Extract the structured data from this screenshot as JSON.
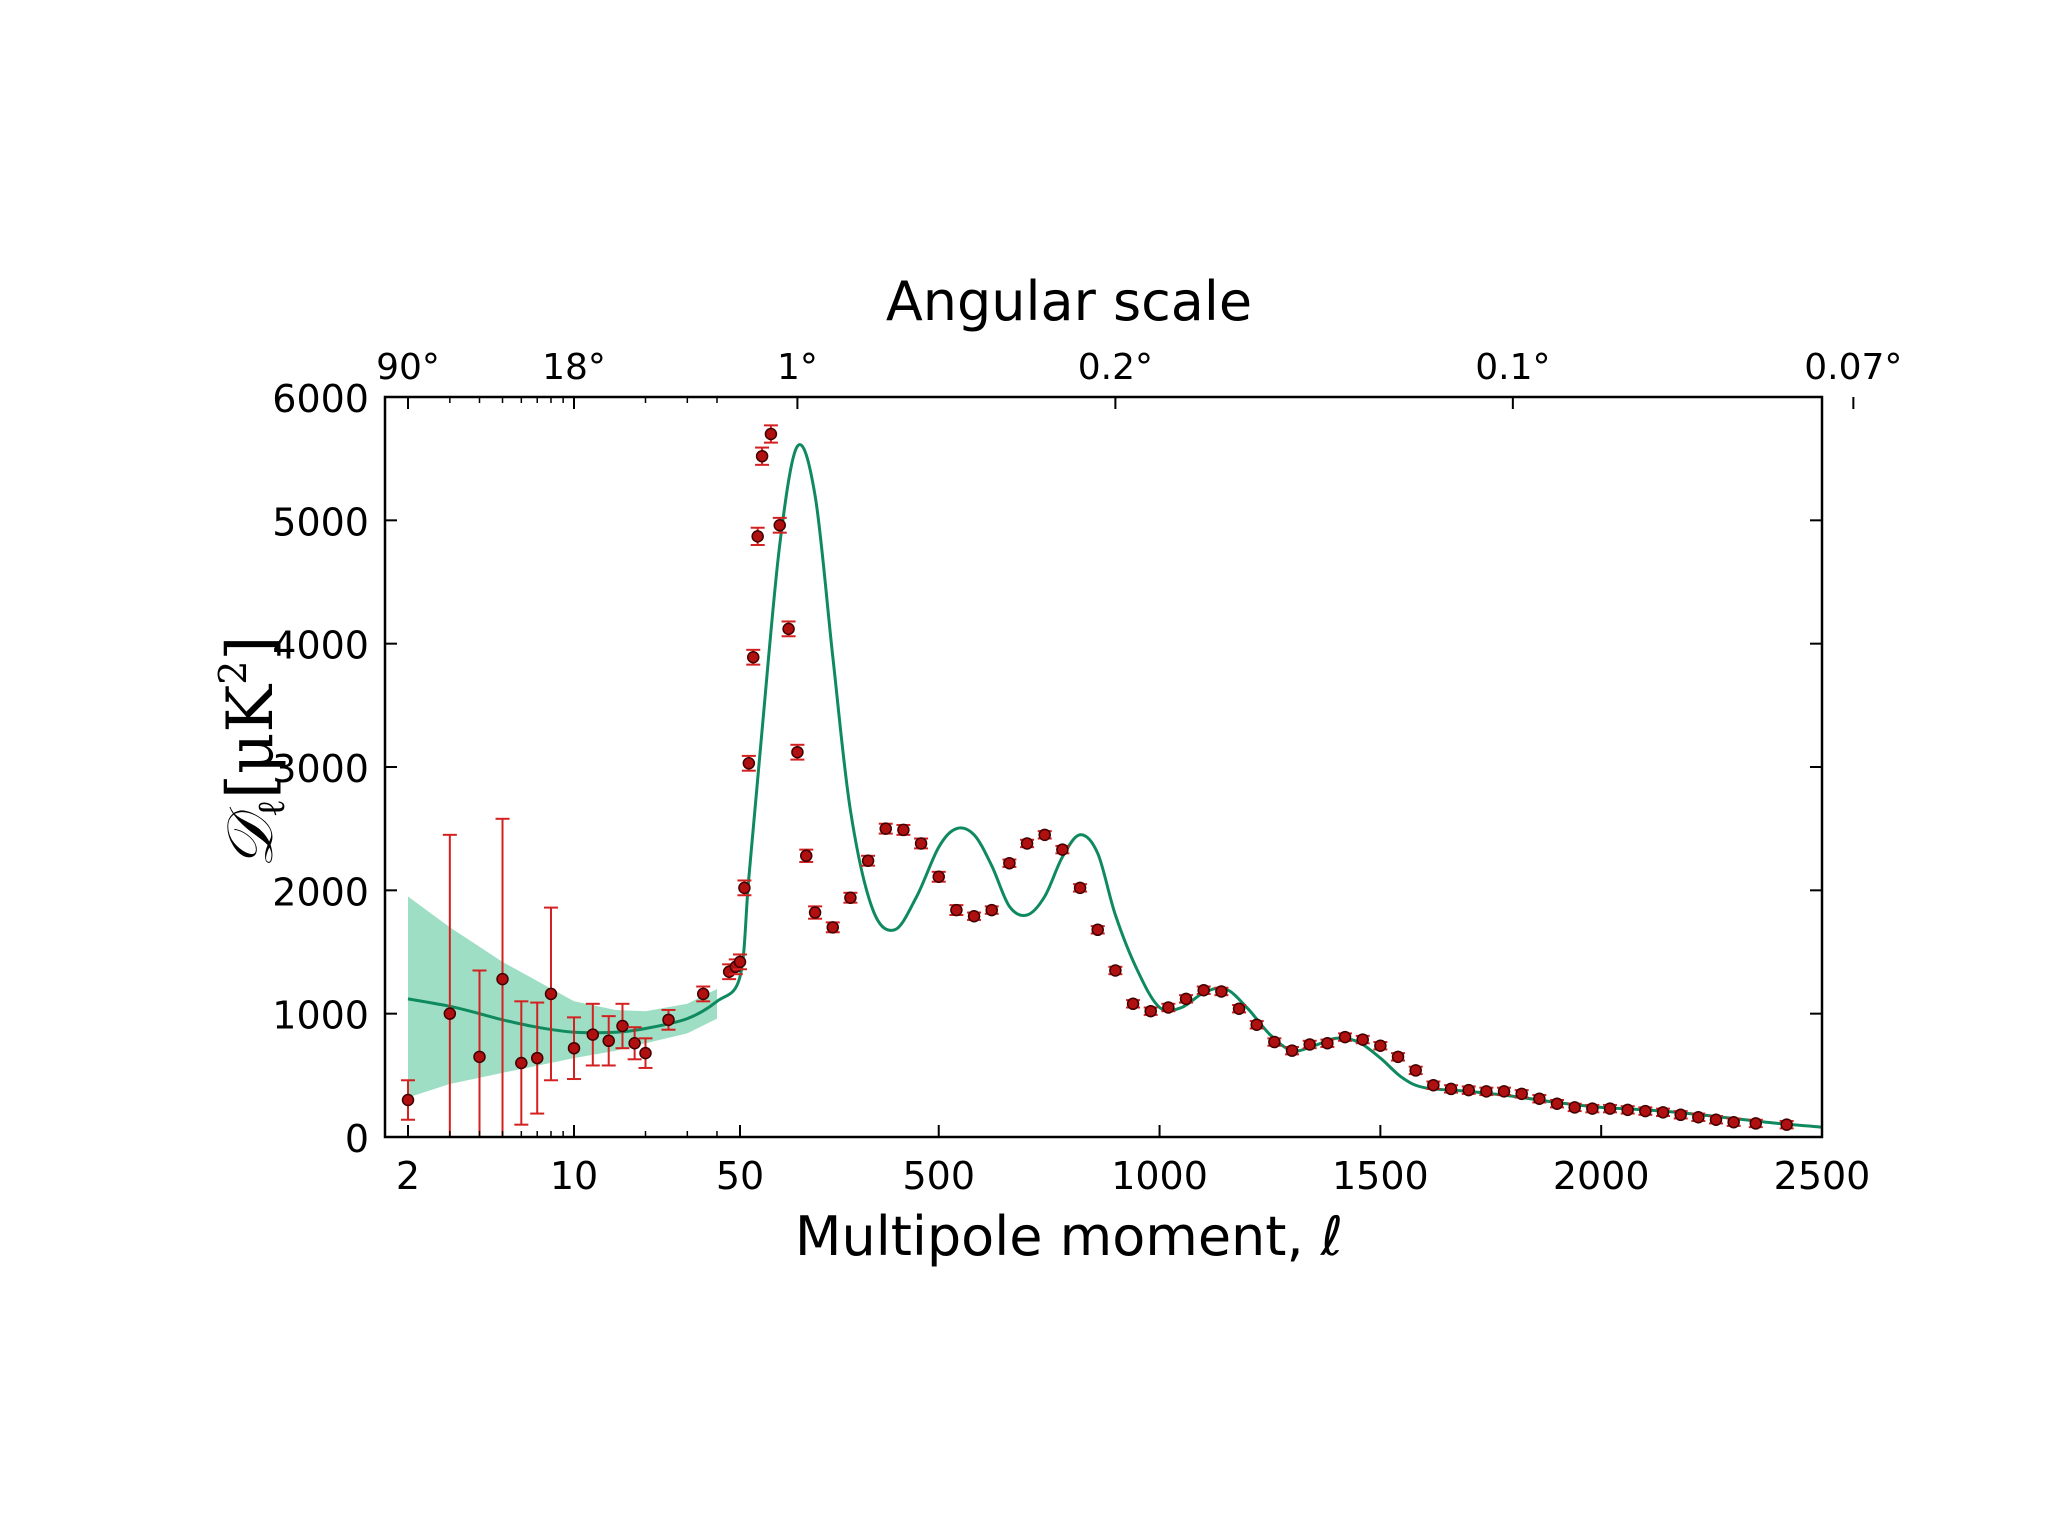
{
  "chart_data": {
    "type": "scatter",
    "title": "Angular scale",
    "xlabel": "Multipole moment, ℓ",
    "ylabel_parts": {
      "main": "𝒟",
      "sub": "ℓ",
      "unit_open": "[μK",
      "unit_sup": "2",
      "unit_close": "]"
    },
    "x_scale": "log below 50, linear above 50",
    "xlim": [
      1.6,
      2500
    ],
    "ylim": [
      0,
      6000
    ],
    "x_ticks": [
      2,
      10,
      50,
      500,
      1000,
      1500,
      2000,
      2500
    ],
    "x_tick_labels": [
      "2",
      "10",
      "50",
      "500",
      "1000",
      "1500",
      "2000",
      "2500"
    ],
    "y_ticks": [
      0,
      1000,
      2000,
      3000,
      4000,
      5000,
      6000
    ],
    "y_tick_labels": [
      "0",
      "1000",
      "2000",
      "3000",
      "4000",
      "5000",
      "6000"
    ],
    "top_axis_tick_multipoles": [
      2,
      10,
      180,
      900,
      1800,
      2571
    ],
    "top_axis_tick_labels": [
      "90°",
      "18°",
      "1°",
      "0.2°",
      "0.1°",
      "0.07°"
    ],
    "grid": false,
    "colors": {
      "data": "#b01010",
      "errorbar": "#d42020",
      "model": "#0f8a5f",
      "band": "#7dd3b0",
      "axis": "#000000"
    },
    "model_curve": {
      "x": [
        2,
        3,
        4,
        5,
        7,
        10,
        15,
        20,
        30,
        40,
        50,
        70,
        100,
        140,
        180,
        220,
        260,
        300,
        350,
        400,
        450,
        500,
        540,
        580,
        620,
        660,
        700,
        740,
        780,
        820,
        860,
        900,
        950,
        1000,
        1050,
        1100,
        1150,
        1200,
        1250,
        1300,
        1350,
        1400,
        1450,
        1500,
        1550,
        1600,
        1700,
        1800,
        1900,
        2000,
        2100,
        2200,
        2300,
        2400,
        2500
      ],
      "y": [
        1120,
        1060,
        1000,
        950,
        890,
        850,
        850,
        880,
        960,
        1100,
        1300,
        2100,
        3300,
        4800,
        5600,
        5200,
        3900,
        2650,
        1850,
        1680,
        1950,
        2350,
        2500,
        2450,
        2200,
        1870,
        1800,
        1950,
        2270,
        2450,
        2300,
        1800,
        1350,
        1050,
        1050,
        1170,
        1200,
        1040,
        830,
        700,
        740,
        800,
        770,
        640,
        480,
        400,
        370,
        330,
        280,
        240,
        220,
        190,
        150,
        110,
        80
      ]
    },
    "model_band": {
      "x": [
        2,
        3,
        5,
        10,
        15,
        20,
        30,
        40
      ],
      "upper": [
        1950,
        1700,
        1420,
        1100,
        1030,
        1020,
        1080,
        1200
      ],
      "lower": [
        320,
        430,
        520,
        640,
        700,
        760,
        840,
        960
      ]
    },
    "series": [
      {
        "x": [
          2,
          3,
          4,
          5,
          6,
          7,
          8,
          10,
          12,
          14,
          16,
          18,
          20,
          25,
          35,
          45,
          48,
          50,
          60,
          70,
          80,
          90,
          100,
          120,
          140,
          160,
          180,
          200,
          220,
          260,
          300,
          340,
          380,
          420,
          460,
          500,
          540,
          580,
          620,
          660,
          700,
          740,
          780,
          820,
          860,
          900,
          940,
          980,
          1020,
          1060,
          1100,
          1140,
          1180,
          1220,
          1260,
          1300,
          1340,
          1380,
          1420,
          1460,
          1500,
          1540,
          1580,
          1620,
          1660,
          1700,
          1740,
          1780,
          1820,
          1860,
          1900,
          1940,
          1980,
          2020,
          2060,
          2100,
          2140,
          2180,
          2220,
          2260,
          2300,
          2350,
          2420
        ],
        "y": [
          300,
          1000,
          650,
          1280,
          600,
          640,
          1160,
          720,
          830,
          780,
          900,
          760,
          680,
          950,
          1160,
          1340,
          1380,
          1420,
          2020,
          3030,
          3890,
          4870,
          5520,
          5700,
          4960,
          4120,
          3120,
          2280,
          1820,
          1700,
          1940,
          2240,
          2500,
          2490,
          2380,
          2110,
          1840,
          1790,
          1840,
          2220,
          2380,
          2450,
          2330,
          2020,
          1680,
          1350,
          1080,
          1020,
          1050,
          1120,
          1190,
          1180,
          1040,
          910,
          770,
          700,
          750,
          760,
          810,
          790,
          740,
          650,
          540,
          420,
          390,
          380,
          370,
          370,
          350,
          310,
          270,
          240,
          230,
          230,
          220,
          210,
          200,
          180,
          160,
          140,
          120,
          110,
          100
        ],
        "err": [
          160,
          1450,
          700,
          1300,
          500,
          450,
          700,
          250,
          250,
          200,
          180,
          130,
          120,
          80,
          60,
          60,
          60,
          60,
          60,
          60,
          60,
          70,
          70,
          70,
          60,
          60,
          60,
          50,
          50,
          40,
          40,
          40,
          40,
          40,
          40,
          40,
          40,
          30,
          30,
          30,
          30,
          30,
          30,
          30,
          30,
          30,
          30,
          30,
          30,
          30,
          30,
          30,
          30,
          30,
          30,
          30,
          30,
          30,
          30,
          30,
          30,
          30,
          30,
          30,
          30,
          30,
          30,
          30,
          30,
          30,
          30,
          30,
          30,
          30,
          30,
          30,
          30,
          30,
          30,
          30,
          30,
          30,
          30
        ]
      }
    ]
  }
}
